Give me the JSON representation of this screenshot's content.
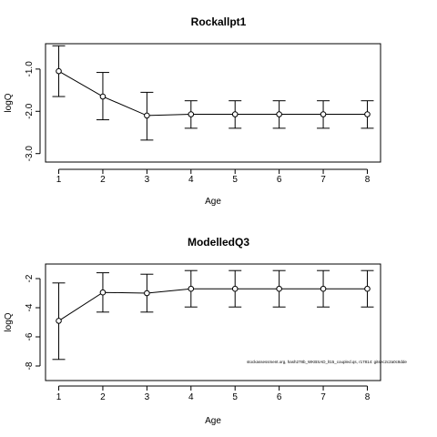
{
  "chart_data": [
    {
      "type": "line",
      "title": "Rockallpt1",
      "xlabel": "Age",
      "ylabel": "logQ",
      "x": [
        1,
        2,
        3,
        4,
        5,
        6,
        7,
        8
      ],
      "xlim": [
        0.7,
        8.3
      ],
      "ylim": [
        -3.2,
        -0.4
      ],
      "xticks": [
        1,
        2,
        3,
        4,
        5,
        6,
        7,
        8
      ],
      "yticks": [
        -1.0,
        -2.0,
        -3.0
      ],
      "ytick_labels": [
        "-1.0",
        "-2.0",
        "-3.0"
      ],
      "series": [
        {
          "values": [
            -1.05,
            -1.65,
            -2.1,
            -2.07,
            -2.07,
            -2.07,
            -2.07,
            -2.07
          ],
          "lower": [
            -1.65,
            -2.2,
            -2.68,
            -2.4,
            -2.4,
            -2.4,
            -2.4,
            -2.4
          ],
          "upper": [
            -0.45,
            -1.08,
            -1.55,
            -1.75,
            -1.75,
            -1.75,
            -1.75,
            -1.75
          ]
        }
      ],
      "grid": false,
      "legend": false
    },
    {
      "type": "line",
      "title": "ModelledQ3",
      "xlabel": "Age",
      "ylabel": "logQ",
      "x": [
        1,
        2,
        3,
        4,
        5,
        6,
        7,
        8
      ],
      "xlim": [
        0.7,
        8.3
      ],
      "ylim": [
        -9.0,
        -1.0
      ],
      "xticks": [
        1,
        2,
        3,
        4,
        5,
        6,
        7,
        8
      ],
      "yticks": [
        -2,
        -4,
        -6,
        -8
      ],
      "ytick_labels": [
        "-2",
        "-4",
        "-6",
        "-8"
      ],
      "series": [
        {
          "values": [
            -4.9,
            -2.95,
            -3.0,
            -2.7,
            -2.7,
            -2.7,
            -2.7,
            -2.7
          ],
          "lower": [
            -7.55,
            -4.3,
            -4.3,
            -3.95,
            -3.95,
            -3.95,
            -3.95,
            -3.95
          ],
          "upper": [
            -2.3,
            -1.6,
            -1.7,
            -1.45,
            -1.45,
            -1.45,
            -1.45,
            -1.45
          ]
        }
      ],
      "grid": false,
      "legend": false,
      "annotation": "stockassessment.org, hash278b_WKBSAD_lt15_coupled.qs, r17814: gitsec2c2a0c8dde"
    }
  ]
}
